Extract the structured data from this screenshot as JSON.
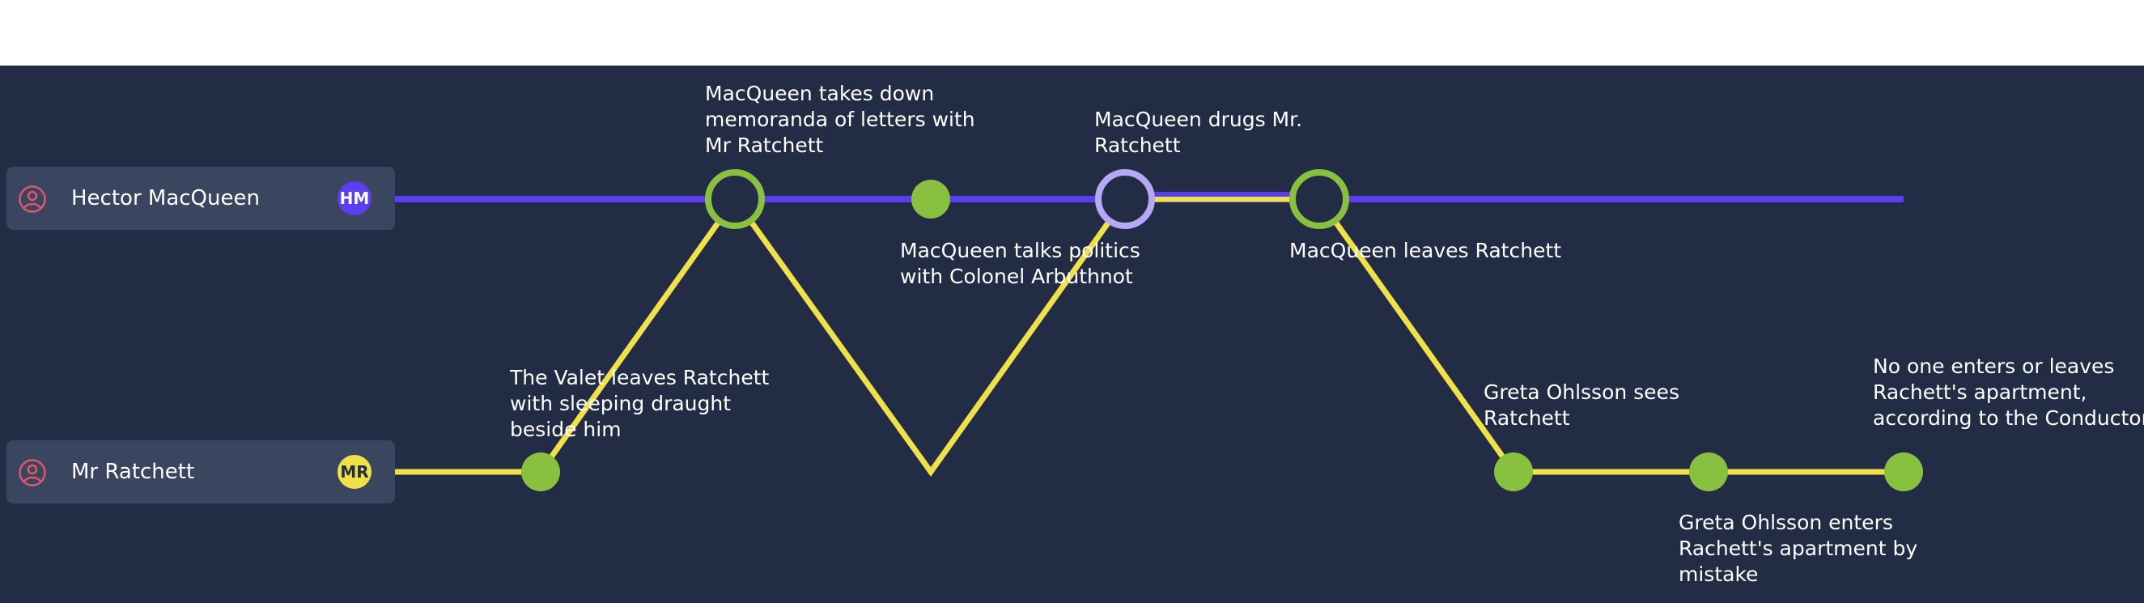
{
  "colors": {
    "background": "#222c44",
    "lane_bg": "#3a4660",
    "person_icon": "#e0566a",
    "event_green": "#88c03f",
    "meeting_purple": "#b5a8f5"
  },
  "people": [
    {
      "name": "Hector MacQueen",
      "initials": "HM",
      "color": "#5c3ef2",
      "badge_text_color": "#ffffff",
      "icon": "person-circle-icon"
    },
    {
      "name": "Mr Ratchett",
      "initials": "MR",
      "color": "#f0e04a",
      "badge_text_color": "#222c44",
      "icon": "person-circle-icon"
    }
  ],
  "events": [
    {
      "label": [
        "The Valet leaves Ratchett",
        "with sleeping draught",
        "beside him"
      ]
    },
    {
      "label": [
        "MacQueen takes down",
        "memoranda of letters with",
        "Mr Ratchett"
      ]
    },
    {
      "label": [
        "MacQueen talks politics",
        "with Colonel Arbuthnot"
      ]
    },
    {
      "label": [
        "MacQueen drugs Mr.",
        "Ratchett"
      ]
    },
    {
      "label": [
        "MacQueen leaves Ratchett"
      ]
    },
    {
      "label": [
        "Greta Ohlsson sees",
        "Ratchett"
      ]
    },
    {
      "label": [
        "Greta Ohlsson enters",
        "Rachett's apartment by",
        "mistake"
      ]
    },
    {
      "label": [
        "No one enters or leaves",
        "Rachett's apartment,",
        "according to the Conductor"
      ]
    }
  ]
}
